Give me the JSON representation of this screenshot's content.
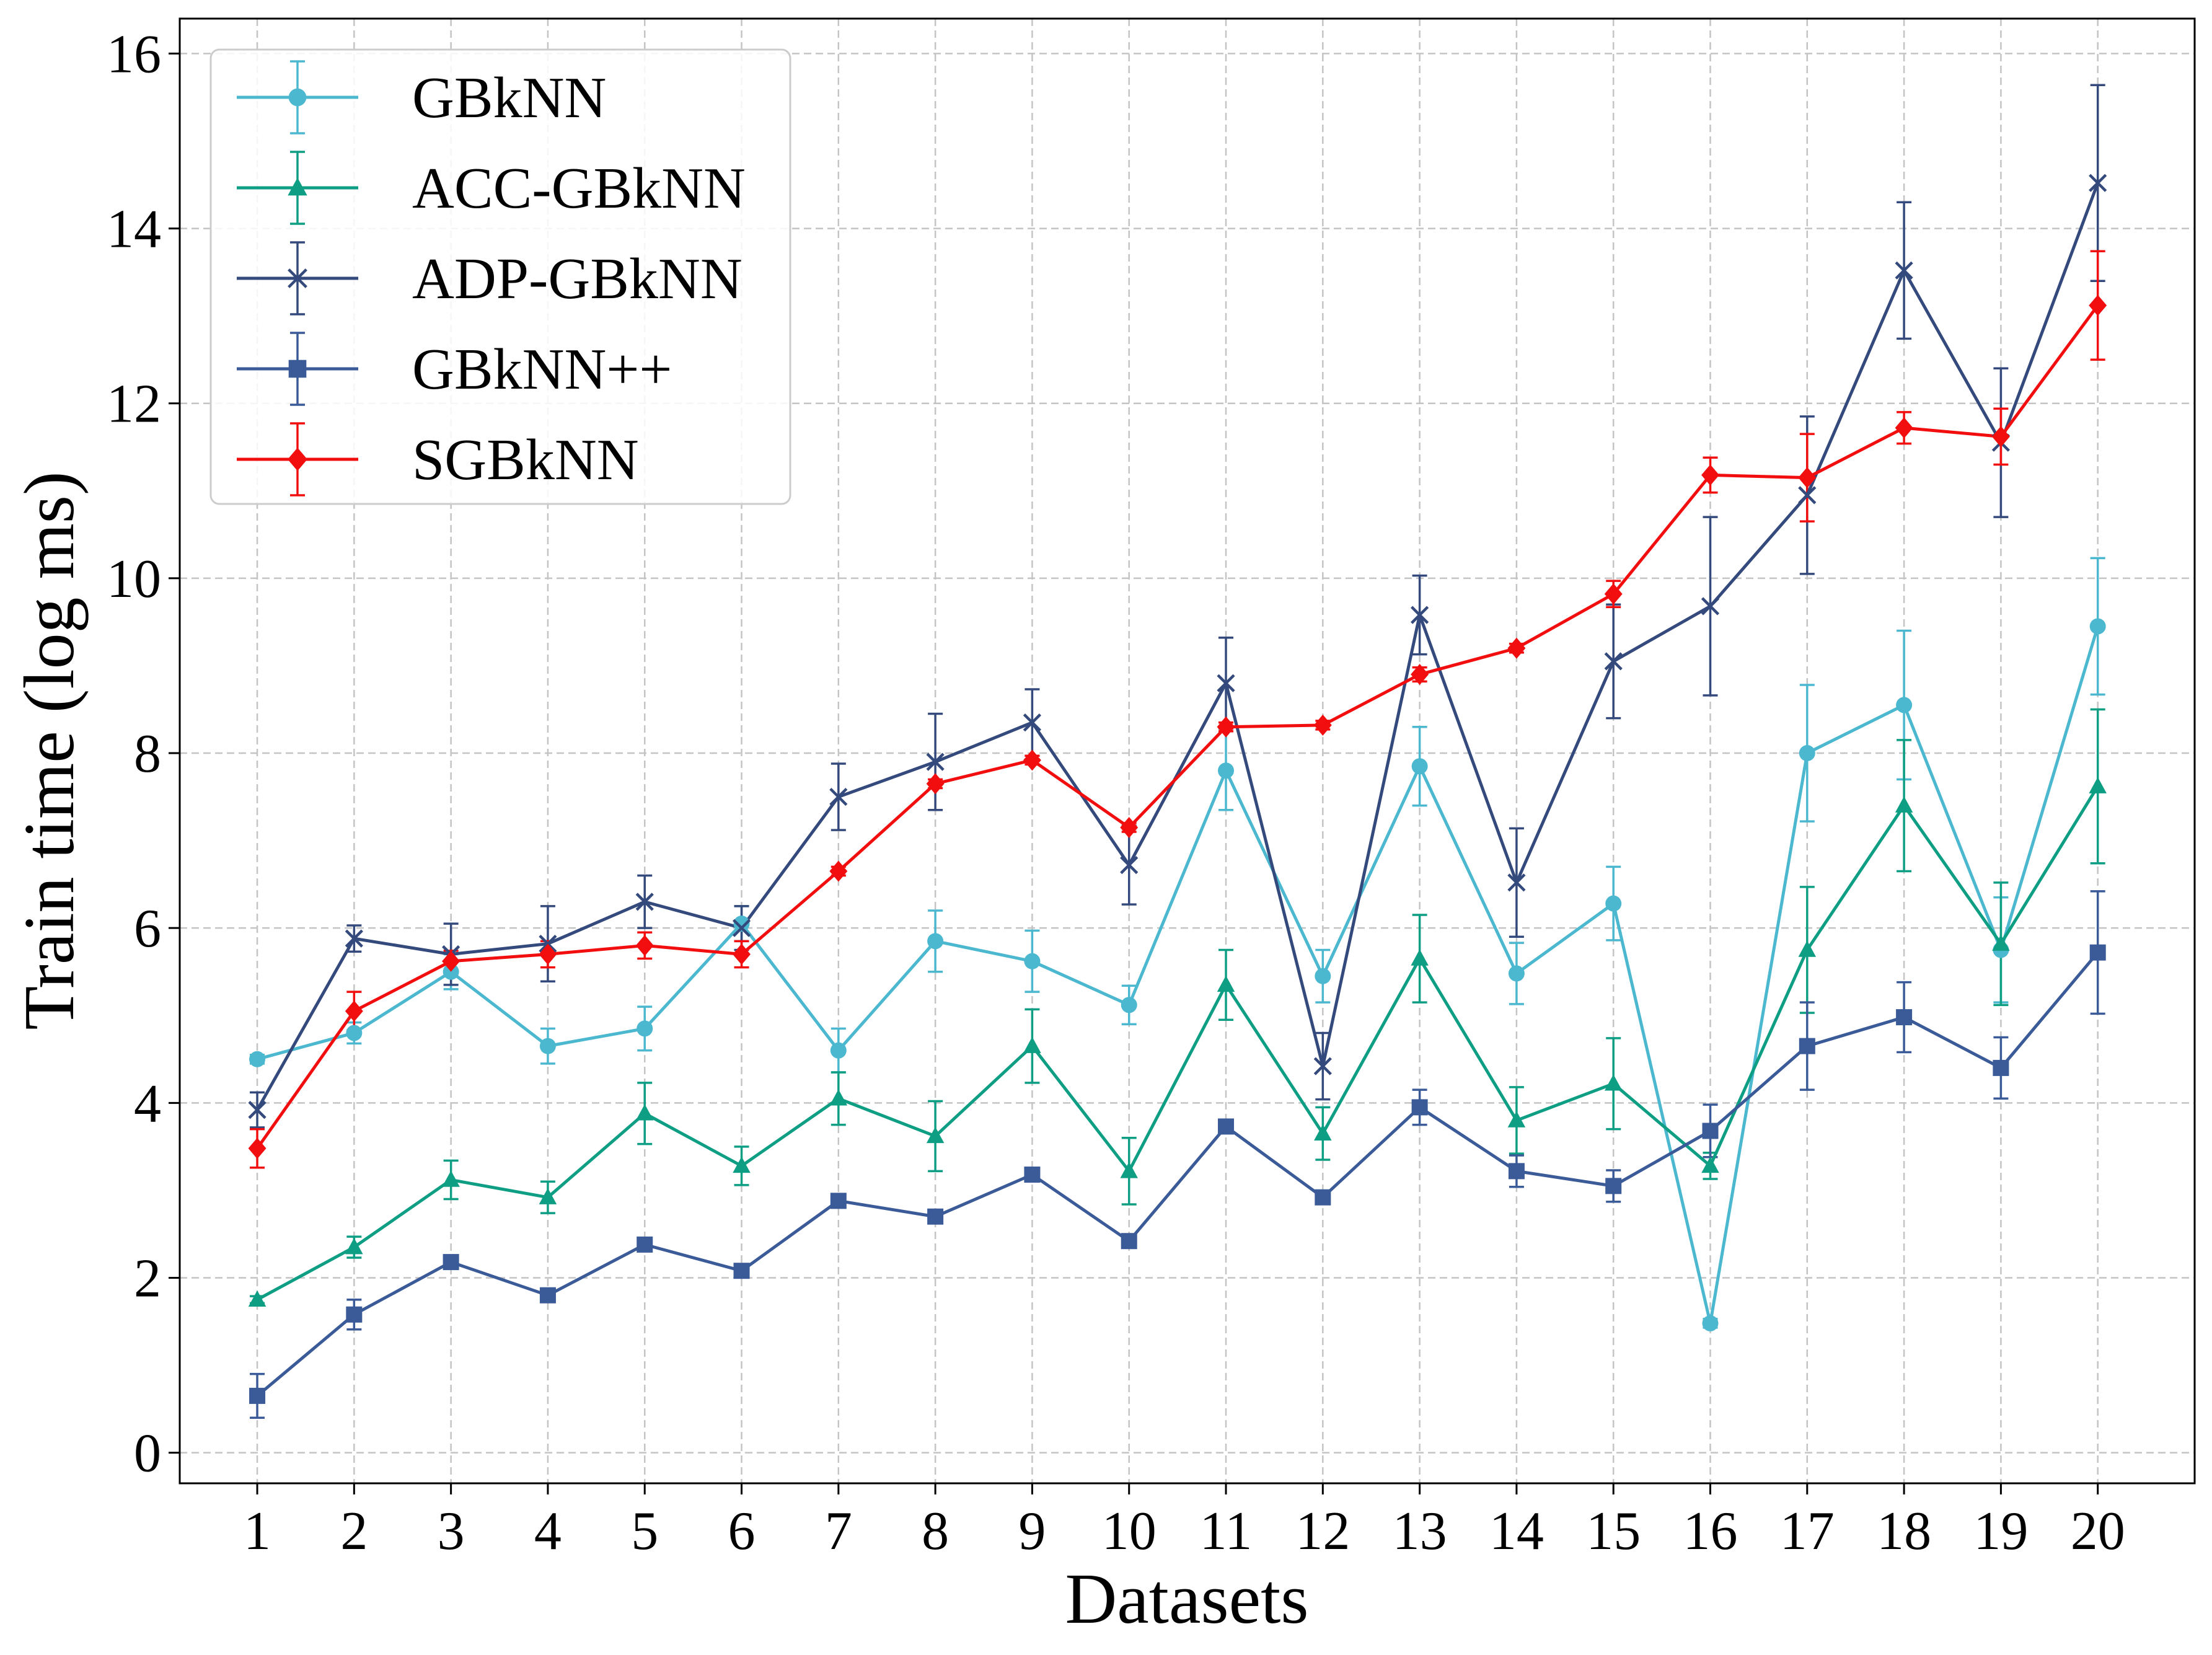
{
  "chart_data": {
    "type": "line",
    "xlabel": "Datasets",
    "ylabel": "Train time (log ms)",
    "x": [
      1,
      2,
      3,
      4,
      5,
      6,
      7,
      8,
      9,
      10,
      11,
      12,
      13,
      14,
      15,
      16,
      17,
      18,
      19,
      20
    ],
    "ylim": [
      -0.35,
      16.4
    ],
    "xlim": [
      0.2,
      21.0
    ],
    "yticks": [
      0,
      2,
      4,
      6,
      8,
      10,
      12,
      14,
      16
    ],
    "grid": true,
    "legend_position": "top-left",
    "series": [
      {
        "name": "GBkNN",
        "color": "#4BB8D0",
        "marker": "circle",
        "values": [
          4.5,
          4.8,
          5.5,
          4.65,
          4.85,
          6.05,
          4.6,
          5.85,
          5.62,
          5.12,
          7.8,
          5.45,
          7.85,
          5.48,
          6.28,
          1.48,
          8.0,
          8.55,
          5.75,
          9.45
        ],
        "errors": [
          0.05,
          0.12,
          0.2,
          0.2,
          0.25,
          0.2,
          0.25,
          0.35,
          0.35,
          0.22,
          0.45,
          0.3,
          0.45,
          0.35,
          0.42,
          0.05,
          0.78,
          0.85,
          0.6,
          0.78
        ]
      },
      {
        "name": "ACC-GBkNN",
        "color": "#0E9E84",
        "marker": "triangle",
        "values": [
          1.75,
          2.35,
          3.12,
          2.92,
          3.88,
          3.28,
          4.05,
          3.62,
          4.65,
          3.22,
          5.35,
          3.65,
          5.65,
          3.8,
          4.22,
          3.28,
          5.75,
          7.4,
          5.82,
          7.62
        ],
        "errors": [
          0.04,
          0.12,
          0.22,
          0.18,
          0.35,
          0.22,
          0.3,
          0.4,
          0.42,
          0.38,
          0.4,
          0.3,
          0.5,
          0.38,
          0.52,
          0.15,
          0.72,
          0.75,
          0.7,
          0.88
        ]
      },
      {
        "name": "ADP-GBkNN",
        "color": "#34497C",
        "marker": "x",
        "values": [
          3.92,
          5.88,
          5.7,
          5.82,
          6.3,
          6.0,
          7.5,
          7.9,
          8.35,
          6.72,
          8.8,
          4.42,
          9.58,
          6.52,
          9.05,
          9.68,
          10.95,
          13.52,
          11.55,
          14.52
        ],
        "errors": [
          0.2,
          0.15,
          0.35,
          0.43,
          0.3,
          0.25,
          0.38,
          0.55,
          0.38,
          0.45,
          0.52,
          0.38,
          0.45,
          0.62,
          0.65,
          1.02,
          0.9,
          0.78,
          0.85,
          1.12
        ]
      },
      {
        "name": "GBkNN++",
        "color": "#3A5A98",
        "marker": "square",
        "values": [
          0.65,
          1.58,
          2.18,
          1.8,
          2.38,
          2.08,
          2.88,
          2.7,
          3.18,
          2.42,
          3.73,
          2.92,
          3.95,
          3.22,
          3.05,
          3.68,
          4.65,
          4.98,
          4.4,
          5.72
        ],
        "errors": [
          0.25,
          0.17,
          0.05,
          0.05,
          0.05,
          0.05,
          0.05,
          0.05,
          0.05,
          0.05,
          0.05,
          0.05,
          0.2,
          0.18,
          0.18,
          0.3,
          0.5,
          0.4,
          0.35,
          0.7
        ]
      },
      {
        "name": "SGBkNN",
        "color": "#F20E0E",
        "marker": "diamond",
        "values": [
          3.48,
          5.05,
          5.62,
          5.7,
          5.8,
          5.7,
          6.65,
          7.65,
          7.92,
          7.15,
          8.3,
          8.32,
          8.9,
          9.2,
          9.82,
          11.18,
          11.15,
          11.72,
          11.62,
          13.12
        ],
        "errors": [
          0.22,
          0.22,
          0.12,
          0.15,
          0.15,
          0.15,
          0.05,
          0.05,
          0.05,
          0.05,
          0.05,
          0.05,
          0.08,
          0.05,
          0.15,
          0.2,
          0.5,
          0.18,
          0.32,
          0.62
        ]
      }
    ]
  }
}
